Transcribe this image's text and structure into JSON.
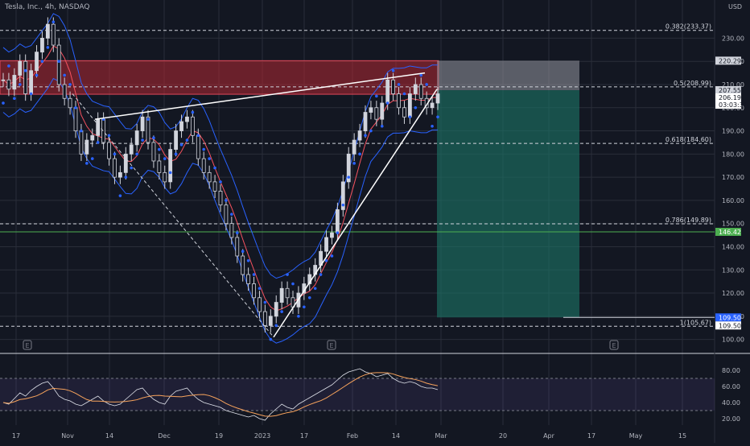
{
  "header": {
    "symbol": "Tesla, Inc., 4h, NASDAQ",
    "currency": "USD"
  },
  "colors": {
    "bg": "#131722",
    "grid": "#2a2e39",
    "text": "#b2b5be",
    "up": "#d1d4dc",
    "down": "#d1d4dc",
    "dots": "#2962ff",
    "bb": "#2962ff",
    "ema": "#f7525f",
    "resistance": "#b22833",
    "target": "#1b6f63",
    "stopzone": "#9598a1",
    "rsi": "#e0e3eb",
    "rsi_ma": "#f7a35c"
  },
  "chart_data": {
    "type": "candlestick",
    "ylim": [
      95,
      243
    ],
    "y_ticks": [
      100,
      110,
      120,
      130,
      140,
      150,
      160,
      170,
      180,
      190,
      200,
      210,
      220,
      230
    ],
    "y_tick_labels": [
      "100.00",
      "110.00",
      "120.00",
      "130.00",
      "140.00",
      "150.00",
      "160.00",
      "170.00",
      "180.00",
      "190.00",
      "200.00",
      "210.00",
      "220.00",
      "230.00"
    ],
    "x_axis": [
      {
        "label": "17"
      },
      {
        "label": "Nov"
      },
      {
        "label": "14"
      },
      {
        "label": "Dec"
      },
      {
        "label": "19"
      },
      {
        "label": "2023"
      },
      {
        "label": "17"
      },
      {
        "label": "Feb"
      },
      {
        "label": "14"
      },
      {
        "label": "Mar"
      },
      {
        "label": "20"
      },
      {
        "label": "Apr"
      },
      {
        "label": "17"
      },
      {
        "label": "May"
      },
      {
        "label": "15"
      }
    ],
    "fib_levels": [
      {
        "label": "0.382(233.37)",
        "value": 233.37
      },
      {
        "label": "0.5(208.99)",
        "value": 208.99
      },
      {
        "label": "0.618(184.60)",
        "value": 184.6
      },
      {
        "label": "0.786(149.89)",
        "value": 149.89
      },
      {
        "label": "1(105.67)",
        "value": 105.67
      }
    ],
    "price_tags": [
      {
        "label": "220.29",
        "value": 220.29,
        "style": "light"
      },
      {
        "label": "207.55",
        "value": 207.55,
        "style": "light"
      },
      {
        "label": "206.19",
        "value": 206.19,
        "style": "current"
      },
      {
        "label": "03:03:34",
        "value": 206.19,
        "style": "timer"
      },
      {
        "label": "146.42",
        "value": 146.42,
        "style": "green"
      },
      {
        "label": "109.50",
        "value": 109.5,
        "style": "blue"
      },
      {
        "label": "109.50",
        "value": 109.5,
        "style": "plain"
      }
    ],
    "position": {
      "entry": 207.55,
      "stop": 220.29,
      "target": 109.5
    },
    "resistance_zone": [
      205.8,
      220.3
    ],
    "closes": [
      212,
      208,
      214,
      220,
      206,
      216,
      224,
      230,
      236,
      227,
      210,
      204,
      200,
      190,
      180,
      186,
      188,
      195,
      185,
      178,
      170,
      172,
      180,
      184,
      190,
      196,
      185,
      177,
      172,
      168,
      182,
      190,
      194,
      196,
      188,
      178,
      172,
      168,
      164,
      158,
      150,
      144,
      136,
      128,
      124,
      118,
      112,
      106,
      110,
      116,
      122,
      118,
      114,
      120,
      124,
      128,
      132,
      138,
      144,
      146,
      156,
      168,
      180,
      186,
      190,
      198,
      200,
      195,
      202,
      212,
      206,
      200,
      196,
      206,
      210,
      204,
      200,
      202,
      206
    ],
    "rsi": {
      "ylim": [
        12,
        98
      ],
      "ticks": [
        20,
        40,
        60,
        80
      ],
      "tick_labels": [
        "20.00",
        "40.00",
        "60.00",
        "80.00"
      ],
      "band": [
        30,
        70
      ],
      "values": [
        40,
        38,
        45,
        52,
        48,
        55,
        60,
        64,
        66,
        58,
        48,
        44,
        42,
        38,
        36,
        40,
        44,
        48,
        42,
        38,
        36,
        38,
        44,
        50,
        56,
        58,
        50,
        44,
        40,
        38,
        48,
        54,
        56,
        58,
        50,
        44,
        40,
        38,
        36,
        34,
        30,
        28,
        26,
        24,
        22,
        24,
        20,
        18,
        26,
        32,
        38,
        34,
        32,
        38,
        42,
        46,
        50,
        54,
        58,
        62,
        68,
        74,
        78,
        80,
        82,
        78,
        76,
        72,
        74,
        76,
        70,
        66,
        64,
        66,
        64,
        60,
        58,
        58,
        56
      ]
    }
  }
}
